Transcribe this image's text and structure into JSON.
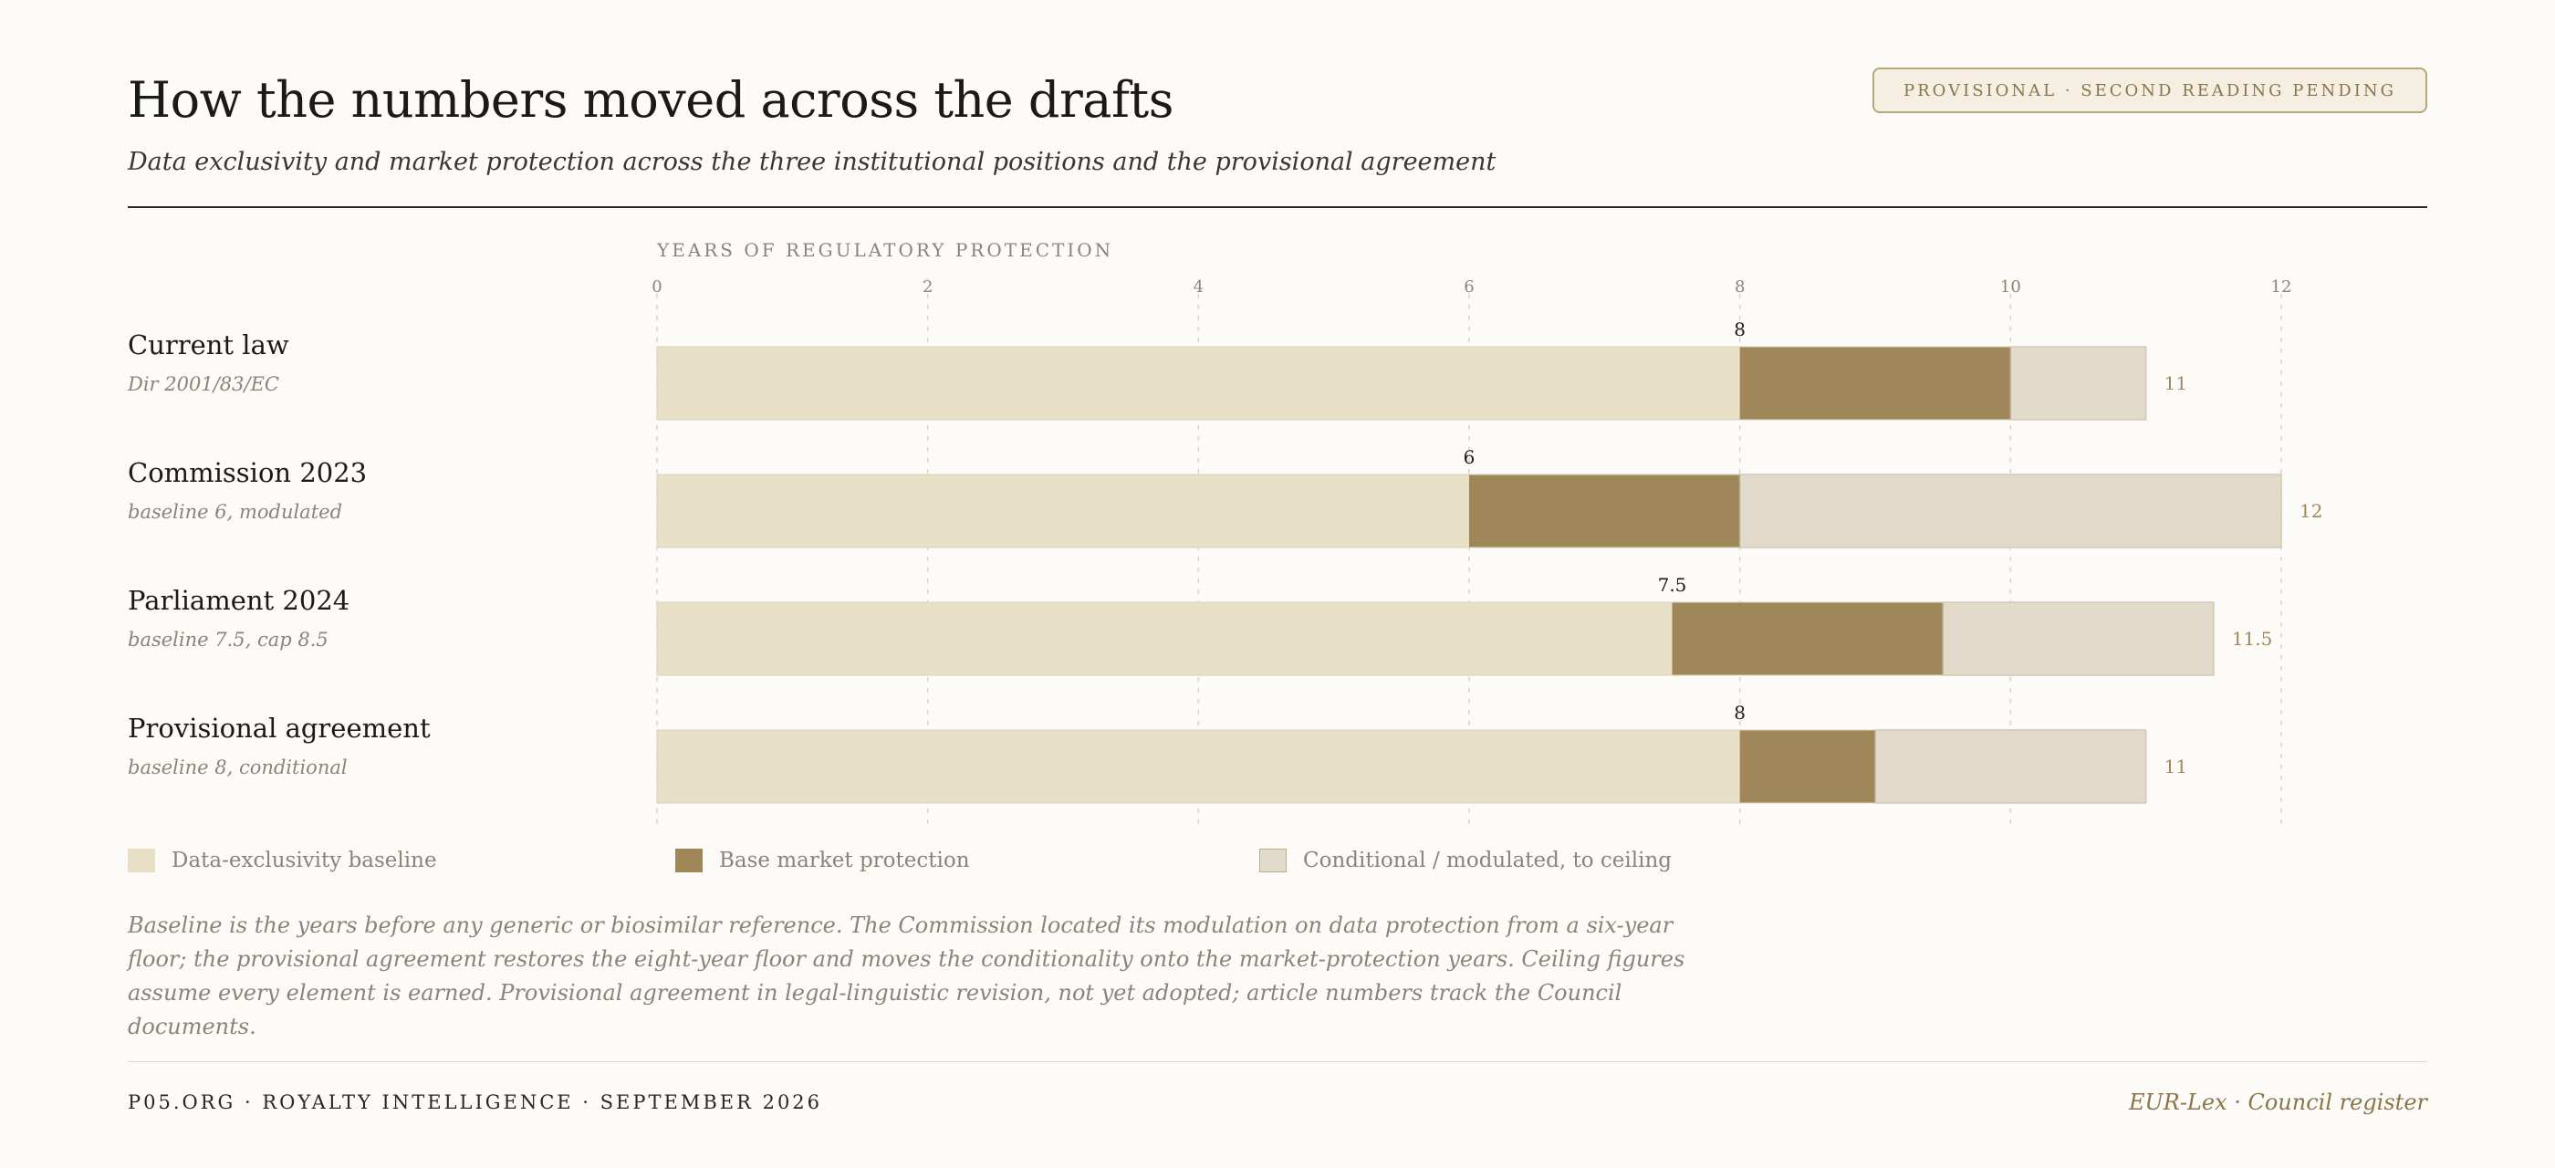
{
  "header": {
    "title": "How the numbers moved across the drafts",
    "subtitle": "Data exclusivity and market protection across the three institutional positions and the provisional agreement",
    "badge": "PROVISIONAL · SECOND READING PENDING"
  },
  "chart_data": {
    "type": "bar",
    "stacked": true,
    "orientation": "horizontal",
    "xlabel": "YEARS OF REGULATORY PROTECTION",
    "xlim": [
      0,
      12
    ],
    "xticks": [
      "0",
      "2",
      "4",
      "6",
      "8",
      "10",
      "12"
    ],
    "grid": true,
    "categories": [
      {
        "label": "Current law",
        "sublabel": "Dir 2001/83/EC"
      },
      {
        "label": "Commission 2023",
        "sublabel": "baseline 6, modulated"
      },
      {
        "label": "Parliament 2024",
        "sublabel": "baseline 7.5, cap 8.5"
      },
      {
        "label": "Provisional agreement",
        "sublabel": "baseline 8, conditional"
      }
    ],
    "series": [
      {
        "name": "Data-exclusivity baseline",
        "color": "#e8dfc7",
        "values": [
          8,
          6,
          7.5,
          8
        ]
      },
      {
        "name": "Base market protection",
        "color": "#a0875a",
        "values": [
          2,
          2,
          2,
          1
        ]
      },
      {
        "name": "Conditional / modulated, to ceiling",
        "color": "#e2dbcc",
        "values": [
          1,
          4,
          2,
          2
        ]
      }
    ],
    "baseline_labels": [
      "8",
      "6",
      "7.5",
      "8"
    ],
    "total_labels": [
      "11",
      "12",
      "11.5",
      "11"
    ]
  },
  "note": "Baseline is the years before any generic or biosimilar reference. The Commission located its modulation on data protection from a six-year floor; the provisional agreement restores the eight-year floor and moves the conditionality onto the market-protection years. Ceiling figures assume every element is earned. Provisional agreement in legal-linguistic revision, not yet adopted; article numbers track the Council documents.",
  "footer": {
    "left": "P05.ORG · ROYALTY INTELLIGENCE · SEPTEMBER 2026",
    "right": "EUR-Lex · Council register"
  }
}
